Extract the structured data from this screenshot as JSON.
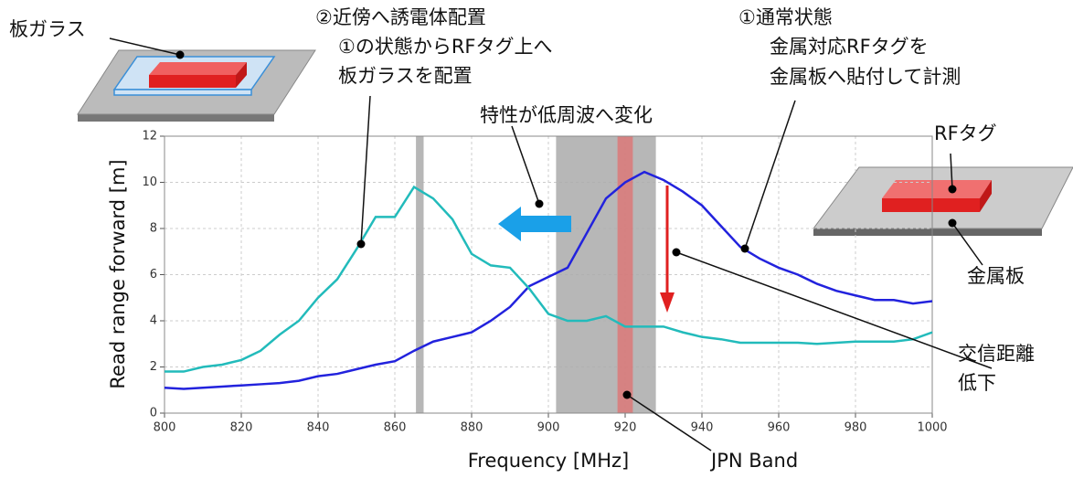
{
  "chart_data": {
    "type": "line",
    "xlabel": "Frequency [MHz]",
    "ylabel": "Read range forward  [m]",
    "x": [
      800,
      805,
      810,
      815,
      820,
      825,
      830,
      835,
      840,
      845,
      850,
      855,
      860,
      865,
      870,
      875,
      880,
      885,
      890,
      895,
      900,
      905,
      910,
      915,
      920,
      925,
      930,
      935,
      940,
      945,
      950,
      955,
      960,
      965,
      970,
      975,
      980,
      985,
      990,
      995,
      1000
    ],
    "series": [
      {
        "color": "#2222dd",
        "values": [
          1.1,
          1.05,
          1.1,
          1.15,
          1.2,
          1.25,
          1.3,
          1.4,
          1.6,
          1.7,
          1.9,
          2.1,
          2.25,
          2.7,
          3.1,
          3.3,
          3.5,
          4.0,
          4.6,
          5.5,
          5.9,
          6.3,
          7.8,
          9.3,
          10.0,
          10.45,
          10.1,
          9.6,
          9.0,
          8.1,
          7.2,
          6.7,
          6.3,
          6.0,
          5.6,
          5.3,
          5.1,
          4.9,
          4.9,
          4.75,
          4.85
        ]
      },
      {
        "color": "#22bbbb",
        "values": [
          1.8,
          1.8,
          2.0,
          2.1,
          2.3,
          2.7,
          3.4,
          4.0,
          5.0,
          5.8,
          7.1,
          8.5,
          8.5,
          9.8,
          9.3,
          8.4,
          6.9,
          6.4,
          6.3,
          5.4,
          4.3,
          4.0,
          4.0,
          4.2,
          3.75,
          3.75,
          3.75,
          3.5,
          3.3,
          3.2,
          3.05,
          3.05,
          3.05,
          3.05,
          3.0,
          3.05,
          3.1,
          3.1,
          3.1,
          3.2,
          3.5
        ]
      }
    ],
    "bands": [
      {
        "xmin": 865.5,
        "xmax": 867.5,
        "color": "#aaaaaa"
      },
      {
        "xmin": 902,
        "xmax": 928,
        "color": "#aaaaaa"
      },
      {
        "xmin": 918,
        "xmax": 922,
        "color": "#e07070"
      }
    ],
    "xlim": [
      800,
      1000
    ],
    "xticks": [
      800,
      820,
      840,
      860,
      880,
      900,
      920,
      940,
      960,
      980,
      1000
    ],
    "ylim": [
      0,
      12
    ],
    "yticks": [
      0,
      2,
      4,
      6,
      8,
      10,
      12
    ],
    "grid": true,
    "annotations": {
      "glass": "板ガラス",
      "near": [
        "②近傍へ誘電体配置",
        "①の状態からRFタグ上へ",
        "板ガラスを配置"
      ],
      "normal": [
        "①通常状態",
        "金属対応RFタグを",
        "金属板へ貼付して計測"
      ],
      "shift": "特性が低周波へ変化",
      "tag": "RFタグ",
      "metal": "金属板",
      "drop": [
        "交信距離",
        "低下"
      ],
      "band": "JPN Band"
    }
  }
}
